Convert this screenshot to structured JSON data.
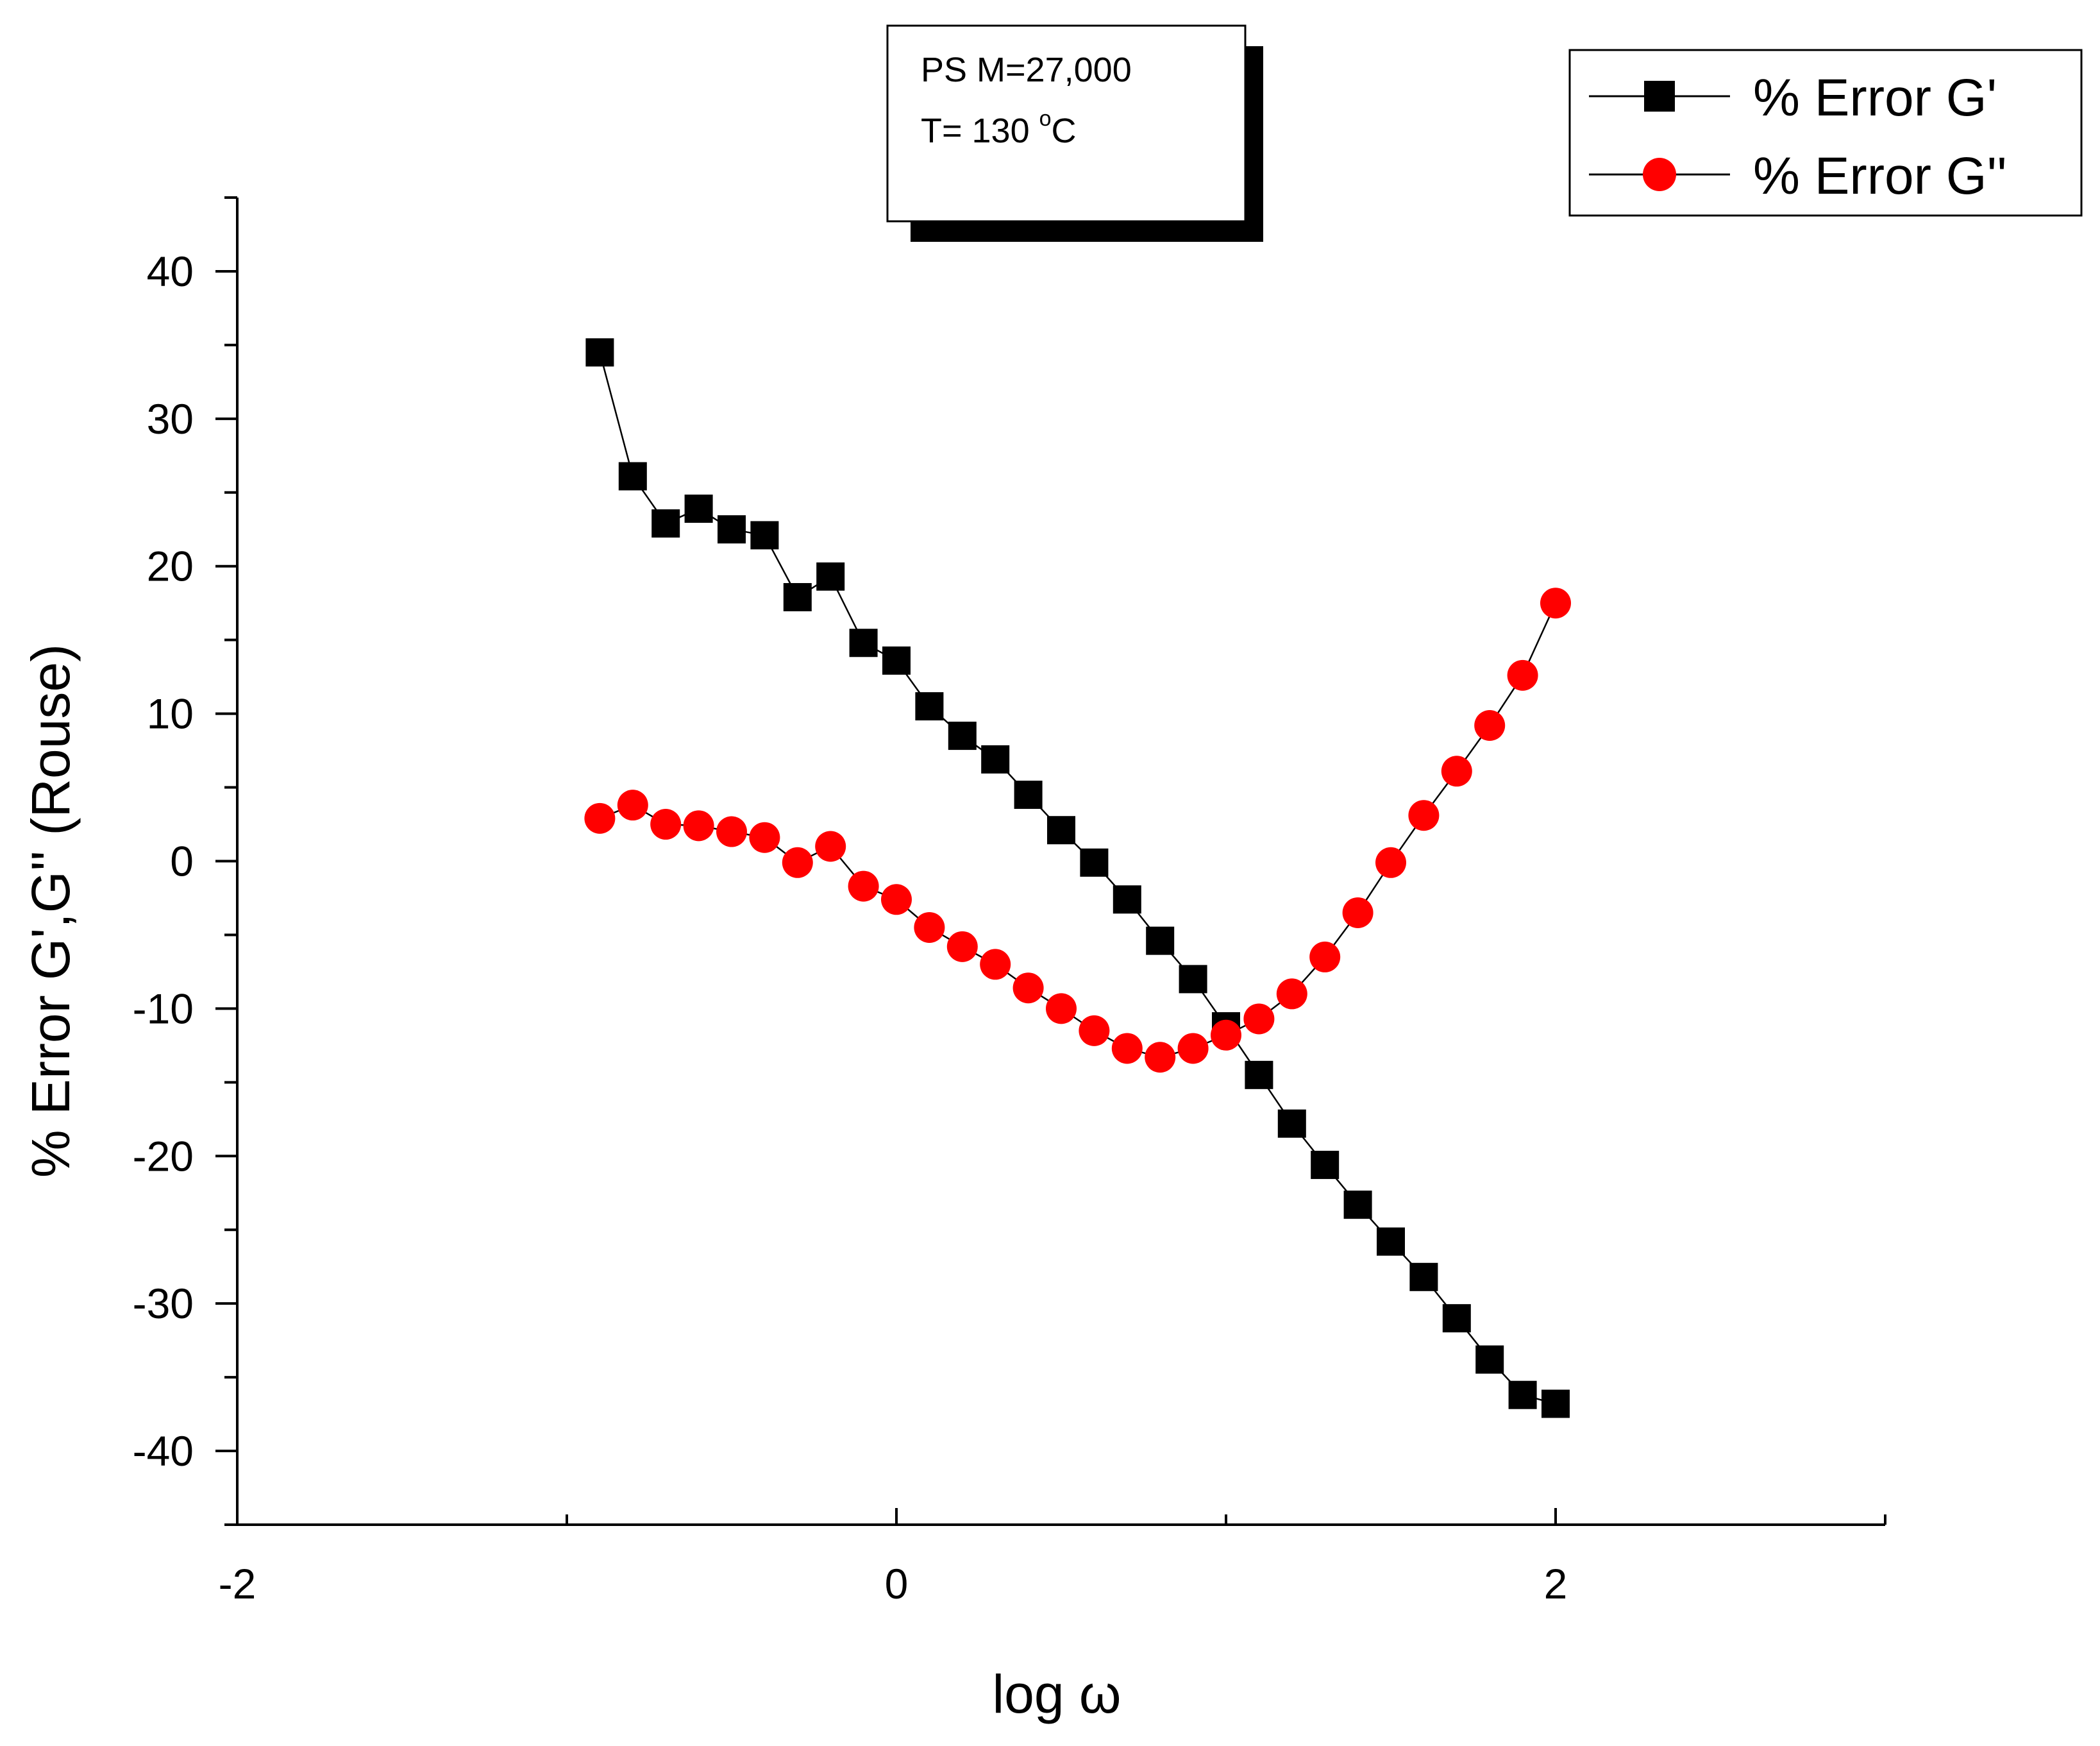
{
  "chart_data": {
    "type": "scatter",
    "xlabel": "log ω",
    "ylabel": "% Error G',G'' (Rouse)",
    "xlim": [
      -2,
      3
    ],
    "ylim": [
      -45,
      45
    ],
    "x_ticks": [
      -2,
      0,
      2
    ],
    "y_ticks": [
      -40,
      -30,
      -20,
      -10,
      0,
      10,
      20,
      30,
      40
    ],
    "grid": false,
    "legend_position": "top-right",
    "annotation": {
      "line1": "PS M=27,000",
      "line2_prefix": "T= 130 ",
      "line2_sup": "o",
      "line2_suffix": "C"
    },
    "series": [
      {
        "name": "% Error G'",
        "marker": "square",
        "color": "#000000",
        "x": [
          -0.9,
          -0.8,
          -0.7,
          -0.6,
          -0.5,
          -0.4,
          -0.3,
          -0.2,
          -0.1,
          0.0,
          0.1,
          0.2,
          0.3,
          0.4,
          0.5,
          0.6,
          0.7,
          0.8,
          0.9,
          1.0,
          1.1,
          1.2,
          1.3,
          1.4,
          1.5,
          1.6,
          1.7,
          1.8,
          1.9,
          2.0
        ],
        "y": [
          34.5,
          26.1,
          22.9,
          23.9,
          22.5,
          22.1,
          17.9,
          19.3,
          14.8,
          13.6,
          10.5,
          8.5,
          6.9,
          4.5,
          2.1,
          -0.1,
          -2.6,
          -5.4,
          -8.0,
          -11.2,
          -14.5,
          -17.8,
          -20.6,
          -23.3,
          -25.8,
          -28.2,
          -31.0,
          -33.8,
          -36.2,
          -36.8
        ]
      },
      {
        "name": "% Error G''",
        "marker": "circle",
        "color": "#ff0000",
        "x": [
          -0.9,
          -0.8,
          -0.7,
          -0.6,
          -0.5,
          -0.4,
          -0.3,
          -0.2,
          -0.1,
          0.0,
          0.1,
          0.2,
          0.3,
          0.4,
          0.5,
          0.6,
          0.7,
          0.8,
          0.9,
          1.0,
          1.1,
          1.2,
          1.3,
          1.4,
          1.5,
          1.6,
          1.7,
          1.8,
          1.9,
          2.0
        ],
        "y": [
          2.9,
          3.8,
          2.5,
          2.4,
          2.0,
          1.6,
          -0.1,
          1.0,
          -1.7,
          -2.6,
          -4.5,
          -5.8,
          -7.0,
          -8.6,
          -10.0,
          -11.5,
          -12.7,
          -13.3,
          -12.7,
          -11.8,
          -10.7,
          -9.0,
          -6.5,
          -3.5,
          -0.1,
          3.1,
          6.1,
          9.2,
          12.6,
          17.5
        ]
      }
    ]
  }
}
